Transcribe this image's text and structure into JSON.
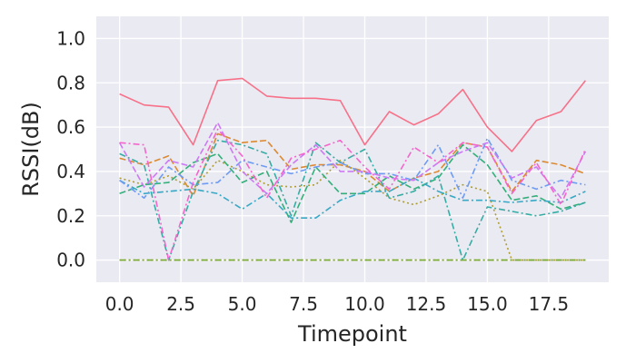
{
  "chart_data": {
    "type": "line",
    "title": "",
    "xlabel": "Timepoint",
    "ylabel": "RSSI(dB)",
    "xlim": [
      -0.95,
      19.95
    ],
    "ylim": [
      -0.1,
      1.1
    ],
    "xticks": [
      0.0,
      2.5,
      5.0,
      7.5,
      10.0,
      12.5,
      15.0,
      17.5
    ],
    "xtick_labels": [
      "0.0",
      "2.5",
      "5.0",
      "7.5",
      "10.0",
      "12.5",
      "15.0",
      "17.5"
    ],
    "yticks": [
      0.0,
      0.2,
      0.4,
      0.6,
      0.8,
      1.0
    ],
    "ytick_labels": [
      "0.0",
      "0.2",
      "0.4",
      "0.6",
      "0.8",
      "1.0"
    ],
    "grid": true,
    "legend": "none",
    "background": "#eaeaf2",
    "x": [
      0,
      1,
      2,
      3,
      4,
      5,
      6,
      7,
      8,
      9,
      10,
      11,
      12,
      13,
      14,
      15,
      16,
      17,
      18,
      19
    ],
    "series": [
      {
        "color": "#f77189",
        "dash": "solid",
        "values": [
          0.75,
          0.7,
          0.69,
          0.52,
          0.81,
          0.82,
          0.74,
          0.73,
          0.73,
          0.72,
          0.52,
          0.67,
          0.61,
          0.66,
          0.77,
          0.6,
          0.49,
          0.63,
          0.67,
          0.81
        ]
      },
      {
        "color": "#dc8932",
        "dash": "dashed",
        "values": [
          0.46,
          0.43,
          0.47,
          0.29,
          0.57,
          0.53,
          0.54,
          0.41,
          0.43,
          0.43,
          0.4,
          0.31,
          0.37,
          0.4,
          0.53,
          0.51,
          0.31,
          0.45,
          0.43,
          0.39
        ]
      },
      {
        "color": "#ae9d31",
        "dash": "dotted",
        "values": [
          0.0,
          0.0,
          0.0,
          0.0,
          0.0,
          0.0,
          0.0,
          0.0,
          0.0,
          0.0,
          0.0,
          0.0,
          0.0,
          0.0,
          0.0,
          0.0,
          0.0,
          0.0,
          0.0,
          0.0
        ]
      },
      {
        "color": "#ae9d31",
        "dash": "dotted",
        "values": [
          0.37,
          0.34,
          0.38,
          0.32,
          0.45,
          0.4,
          0.34,
          0.33,
          0.34,
          0.45,
          0.37,
          0.28,
          0.25,
          0.29,
          0.34,
          0.31,
          0.0,
          0.0,
          0.0,
          0.0
        ]
      },
      {
        "color": "#77ab31",
        "dash": "dashdot",
        "values": [
          0.0,
          0.0,
          0.0,
          0.0,
          0.0,
          0.0,
          0.0,
          0.0,
          0.0,
          0.0,
          0.0,
          0.0,
          0.0,
          0.0,
          0.0,
          0.0,
          0.0,
          0.0,
          0.0,
          0.0
        ]
      },
      {
        "color": "#33b07a",
        "dash": "dashed",
        "values": [
          0.3,
          0.34,
          0.35,
          0.44,
          0.48,
          0.35,
          0.4,
          0.17,
          0.42,
          0.3,
          0.3,
          0.38,
          0.32,
          0.37,
          0.52,
          0.43,
          0.27,
          0.29,
          0.23,
          0.26
        ]
      },
      {
        "color": "#36ada4",
        "dash": "dashdot",
        "values": [
          0.48,
          0.43,
          0.0,
          0.31,
          0.54,
          0.52,
          0.48,
          0.2,
          0.53,
          0.44,
          0.5,
          0.28,
          0.31,
          0.38,
          0.0,
          0.24,
          0.22,
          0.2,
          0.22,
          0.26
        ]
      },
      {
        "color": "#38a9c5",
        "dash": "dashdot",
        "values": [
          0.36,
          0.3,
          0.31,
          0.32,
          0.3,
          0.23,
          0.3,
          0.19,
          0.19,
          0.27,
          0.31,
          0.31,
          0.37,
          0.31,
          0.27,
          0.27,
          0.26,
          0.27,
          0.26,
          0.31
        ]
      },
      {
        "color": "#6e9bf4",
        "dash": "dashdot",
        "values": [
          0.36,
          0.28,
          0.42,
          0.34,
          0.35,
          0.45,
          0.42,
          0.39,
          0.42,
          0.44,
          0.39,
          0.39,
          0.36,
          0.52,
          0.28,
          0.55,
          0.36,
          0.32,
          0.36,
          0.34
        ]
      },
      {
        "color": "#cc7af4",
        "dash": "dashed",
        "values": [
          0.53,
          0.33,
          0.45,
          0.42,
          0.62,
          0.4,
          0.3,
          0.43,
          0.52,
          0.4,
          0.4,
          0.37,
          0.36,
          0.44,
          0.49,
          0.53,
          0.37,
          0.42,
          0.28,
          0.49
        ]
      },
      {
        "color": "#f565cc",
        "dash": "dashdot",
        "values": [
          0.53,
          0.52,
          0.0,
          0.35,
          0.59,
          0.47,
          0.28,
          0.46,
          0.5,
          0.54,
          0.42,
          0.32,
          0.51,
          0.44,
          0.53,
          0.51,
          0.3,
          0.44,
          0.25,
          0.5
        ]
      }
    ]
  }
}
